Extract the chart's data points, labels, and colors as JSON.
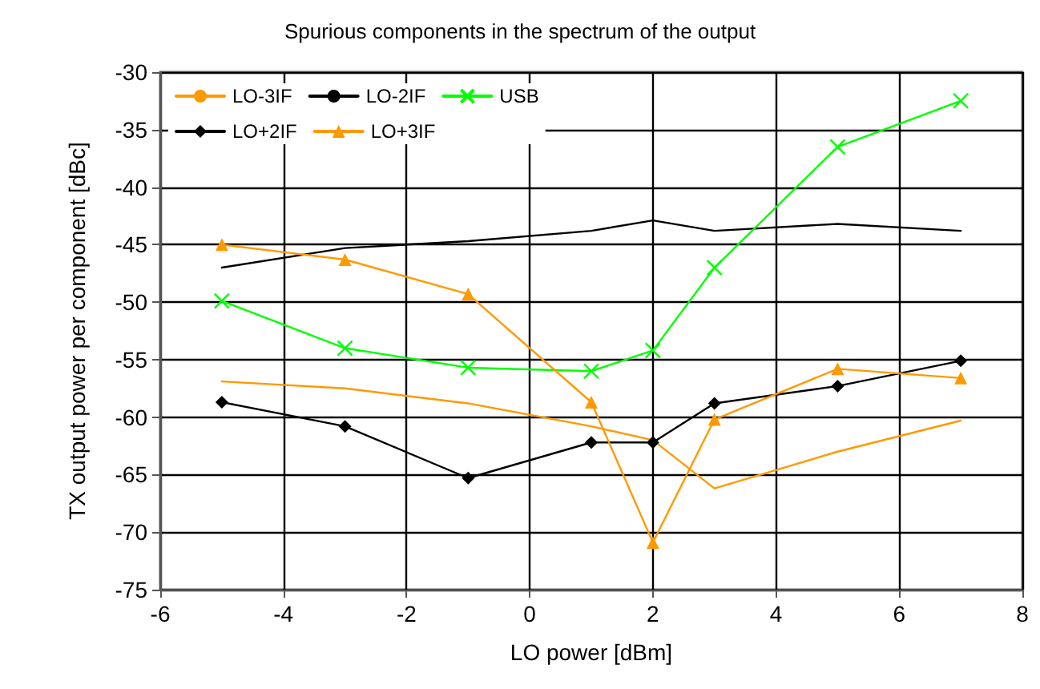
{
  "chart_data": {
    "type": "line",
    "title": "Spurious components in the spectrum of the output",
    "xlabel": "LO power [dBm]",
    "ylabel": "TX output power per component [dBc]",
    "x": [
      -5,
      -3,
      -1,
      1,
      2,
      3,
      5,
      7
    ],
    "series": [
      {
        "name": "LO-3IF",
        "color": "#ff9900",
        "marker": "none",
        "values": [
          -56.9,
          -57.5,
          -58.8,
          -60.8,
          -62,
          -66.2,
          -63,
          -60.3
        ]
      },
      {
        "name": "LO-2IF",
        "color": "#000000",
        "marker": "none",
        "values": [
          -47,
          -45.3,
          -44.7,
          -43.8,
          -42.9,
          -43.8,
          -43.2,
          -43.8
        ]
      },
      {
        "name": "USB",
        "color": "#00ff00",
        "marker": "cross",
        "values": [
          -49.9,
          -54,
          -55.7,
          -56,
          -54.2,
          -47,
          -36.5,
          -32.5
        ]
      },
      {
        "name": "LO+2IF",
        "color": "#000000",
        "marker": "diamond",
        "values": [
          -58.7,
          -60.8,
          -65.3,
          -62.2,
          -62.2,
          -58.8,
          -57.3,
          -55.1
        ]
      },
      {
        "name": "LO+3IF",
        "color": "#ff9900",
        "marker": "triangle",
        "values": [
          -45,
          -46.3,
          -49.3,
          -58.7,
          -70.9,
          -60.2,
          -55.8,
          -56.6
        ]
      }
    ],
    "xlim": [
      -6,
      8
    ],
    "xticks": [
      -6,
      -4,
      -2,
      0,
      2,
      4,
      6,
      8
    ],
    "ylim": [
      -75,
      -30
    ],
    "yticks": [
      -75,
      -70,
      -65,
      -60,
      -55,
      -50,
      -45,
      -40,
      -35,
      -30
    ],
    "grid": true,
    "legend": "top left"
  }
}
